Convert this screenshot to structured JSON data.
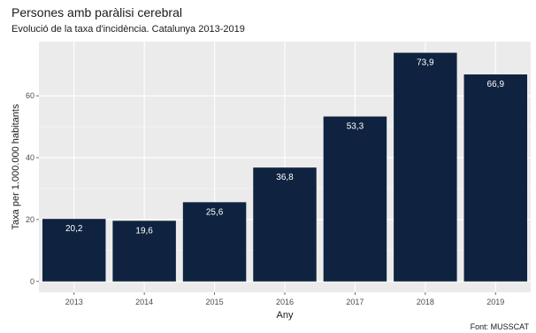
{
  "chart_data": {
    "type": "bar",
    "title": "Persones amb paràlisi cerebral",
    "subtitle": "Evolució de la taxa d'incidència. Catalunya 2013-2019",
    "xlabel": "Any",
    "ylabel": "Taxa per 1.000.000 habitants",
    "caption": "Font: MUSSCAT",
    "categories": [
      "2013",
      "2014",
      "2015",
      "2016",
      "2017",
      "2018",
      "2019"
    ],
    "values": [
      20.2,
      19.6,
      25.6,
      36.8,
      53.3,
      73.9,
      66.9
    ],
    "value_labels": [
      "20,2",
      "19,6",
      "25,6",
      "36,8",
      "53,3",
      "73,9",
      "66,9"
    ],
    "yticks": [
      0,
      20,
      40,
      60
    ],
    "ylim": [
      -3.5,
      77.5
    ],
    "bar_color": "#0f2340",
    "panel_background": "#ebebeb",
    "grid": true
  }
}
